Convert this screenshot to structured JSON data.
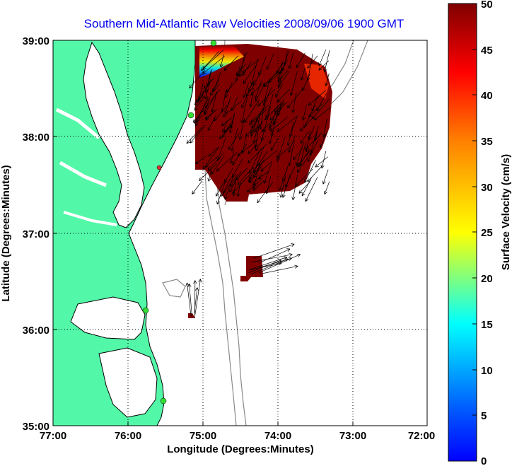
{
  "title": "Southern Mid-Atlantic Raw Velocities 2008/09/06 1900 GMT",
  "xaxis": {
    "label": "Longitude (Degrees:Minutes)",
    "ticks": [
      "77:00",
      "76:00",
      "75:00",
      "74:00",
      "73:00",
      "72:00"
    ]
  },
  "yaxis": {
    "label": "Latitude (Degrees:Minutes)",
    "ticks": [
      "39:00",
      "38:00",
      "37:00",
      "36:00",
      "35:00"
    ]
  },
  "colorbar": {
    "label": "Surface Velocity (cm/s)",
    "ticks": [
      "50",
      "45",
      "40",
      "35",
      "30",
      "25",
      "20",
      "15",
      "10",
      "5",
      "0"
    ],
    "range": [
      0,
      50
    ]
  },
  "colors": {
    "land": "#52f7a8",
    "max_velocity": "#7f0000",
    "title": "#0000ee",
    "stations": "#33dd33"
  },
  "map": {
    "lon_range": [
      -77,
      -72
    ],
    "lat_range": [
      35,
      39
    ],
    "grid": "dotted",
    "station_count": 4
  }
}
